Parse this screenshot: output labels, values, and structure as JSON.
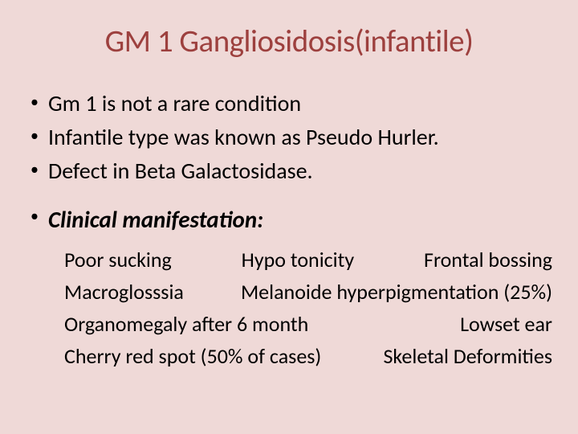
{
  "colors": {
    "background": "#efd9d7",
    "title": "#9d403e",
    "text": "#000000"
  },
  "typography": {
    "family": "Calibri",
    "title_size_pt": 39,
    "bullet_size_pt": 28,
    "clinical_size_pt": 29,
    "manifest_size_pt": 26
  },
  "title": "GM 1 Gangliosidosis(infantile)",
  "bullets": [
    "Gm 1 is not a rare condition",
    "Infantile type was known as Pseudo Hurler.",
    "Defect in  Beta Galactosidase."
  ],
  "clinical_heading": "Clinical manifestation:",
  "manifestations": {
    "row1": {
      "a": "Poor sucking",
      "b": "Hypo tonicity",
      "c": "Frontal bossing"
    },
    "row2": {
      "a": "Macroglosssia",
      "b": "Melanoide hyperpigmentation (25%)"
    },
    "row3": {
      "a": "Organomegaly after 6 month",
      "b": "Lowset ear"
    },
    "row4": {
      "a": "Cherry red spot (50% of cases)",
      "b": "Skeletal Deformities"
    }
  }
}
